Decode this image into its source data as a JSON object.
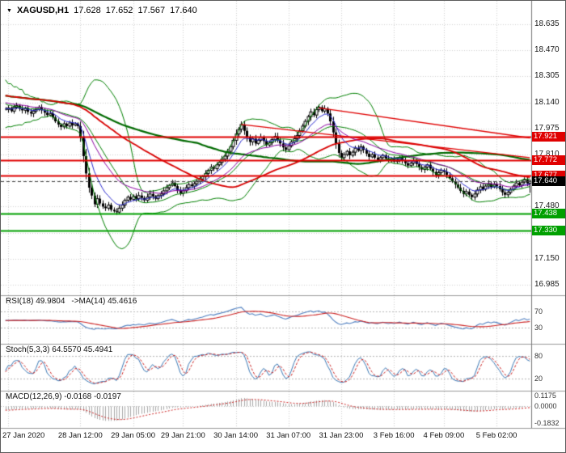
{
  "header": {
    "dropdown_icon": "▼",
    "symbol_display": "XAGUSD,H1",
    "ohlc": {
      "open": "17.628",
      "high": "17.652",
      "low": "17.567",
      "close": "17.640"
    }
  },
  "price_axis": {
    "labels": [
      "18.635",
      "18.470",
      "18.305",
      "18.140",
      "17.975",
      "17.810",
      "17.645",
      "17.480",
      "17.315",
      "17.150",
      "16.985"
    ]
  },
  "time_axis": {
    "labels": [
      "27 Jan 2020",
      "28 Jan 12:00",
      "29 Jan 05:00",
      "29 Jan 21:00",
      "30 Jan 14:00",
      "31 Jan 07:00",
      "31 Jan 23:00",
      "3 Feb 16:00",
      "4 Feb 09:00",
      "5 Feb 02:00"
    ],
    "indices": [
      1,
      27,
      46,
      64,
      83,
      102,
      121,
      140,
      158,
      177
    ]
  },
  "levels": [
    {
      "price": "17.921",
      "color": "#e00000",
      "kind": "resistance"
    },
    {
      "price": "17.772",
      "color": "#e00000",
      "kind": "resistance"
    },
    {
      "price": "17.677",
      "color": "#e00000",
      "kind": "resistance"
    },
    {
      "price": "17.438",
      "color": "#00a000",
      "kind": "support"
    },
    {
      "price": "17.330",
      "color": "#00a000",
      "kind": "support"
    }
  ],
  "current_price": {
    "value": "17.640",
    "box_color": "#000000"
  },
  "colors": {
    "grid": "#cfcfcf",
    "candle_bull": "#ffffff",
    "candle_bear": "#000000",
    "candle_outline": "#000000",
    "bollinger": "#008000",
    "ma_long_green": "#006a00",
    "ma_red": "#d80000",
    "ema_blue": "#2a2ad0",
    "ema_purple": "#8a00a0",
    "level_red": "#e00000",
    "level_green": "#00a000",
    "separator": "#9a9a9a",
    "rsi_main": "#4f7fc0",
    "rsi_ma": "#cc2222",
    "stoch_k": "#3a78b5",
    "stoch_d": "#cc2222",
    "macd_hist": "#a8a8a8",
    "macd_signal": "#cc2222"
  },
  "indicators": {
    "rsi": {
      "label": "RSI(18) 49.9804",
      "ma_label": "->MA(14) 45.4616",
      "period": 18,
      "ma_period": 14,
      "levels": [
        70,
        30
      ],
      "axis_labels": [
        "70",
        "30"
      ]
    },
    "stoch": {
      "label": "Stoch(5,3,3) 64.5570 45.4941",
      "k": 5,
      "d": 3,
      "slowing": 3,
      "levels": [
        80,
        20
      ],
      "axis_labels": [
        "80",
        "20"
      ]
    },
    "macd": {
      "label": "MACD(12,26,9) -0.0168 -0.0197",
      "fast": 12,
      "slow": 26,
      "signal": 9,
      "axis_labels": [
        "0.1175",
        "0.0000",
        "-0.1832"
      ]
    }
  },
  "chart_data": {
    "type": "candlestick",
    "symbol": "XAGUSD",
    "timeframe": "H1",
    "overlays": {
      "bollinger": {
        "period": 20,
        "deviation": 2
      },
      "ma_long": {
        "period": 100,
        "type": "sma"
      },
      "ma_red": {
        "period": 55,
        "type": "sma"
      },
      "ema_fast": {
        "period": 8,
        "type": "ema"
      },
      "ema_mid": {
        "period": 21,
        "type": "ema"
      }
    },
    "trendlines": [
      {
        "i1": 85,
        "p1": 18.0,
        "i2": 189,
        "p2": 17.79
      },
      {
        "i1": 113,
        "p1": 18.105,
        "i2": 189,
        "p2": 17.915
      }
    ],
    "warmup_closes": [
      18.3,
      18.38,
      18.22,
      18.42,
      18.15,
      18.35,
      18.2,
      18.4,
      18.18,
      18.32,
      18.12,
      18.28,
      18.1,
      18.25,
      18.08,
      18.22,
      18.12,
      18.26,
      18.06,
      18.18,
      18.02,
      18.15,
      18.05,
      18.2,
      18.08,
      18.16,
      18.04,
      18.12,
      18.06,
      18.1
    ],
    "closes": [
      18.095,
      18.105,
      18.085,
      18.11,
      18.12,
      18.1,
      18.09,
      18.105,
      18.08,
      18.07,
      18.085,
      18.095,
      18.11,
      18.09,
      18.075,
      18.06,
      18.07,
      18.045,
      18.02,
      18.0,
      17.985,
      18.005,
      17.99,
      18.01,
      17.995,
      18.005,
      17.99,
      17.92,
      17.8,
      17.69,
      17.6,
      17.55,
      17.495,
      17.53,
      17.5,
      17.48,
      17.47,
      17.49,
      17.46,
      17.45,
      17.445,
      17.47,
      17.49,
      17.52,
      17.54,
      17.525,
      17.545,
      17.53,
      17.55,
      17.535,
      17.52,
      17.54,
      17.56,
      17.545,
      17.53,
      17.55,
      17.56,
      17.58,
      17.6,
      17.615,
      17.63,
      17.61,
      17.585,
      17.565,
      17.58,
      17.6,
      17.62,
      17.61,
      17.625,
      17.64,
      17.655,
      17.67,
      17.69,
      17.71,
      17.73,
      17.72,
      17.745,
      17.76,
      17.78,
      17.8,
      17.83,
      17.86,
      17.9,
      17.94,
      17.97,
      18.0,
      17.96,
      17.92,
      17.89,
      17.91,
      17.88,
      17.9,
      17.92,
      17.895,
      17.87,
      17.885,
      17.905,
      17.925,
      17.9,
      17.88,
      17.855,
      17.84,
      17.865,
      17.89,
      17.91,
      17.93,
      17.96,
      17.99,
      18.02,
      18.05,
      18.08,
      18.06,
      18.095,
      18.11,
      18.085,
      18.1,
      18.07,
      18.02,
      17.95,
      17.88,
      17.82,
      17.79,
      17.81,
      17.83,
      17.805,
      17.825,
      17.85,
      17.835,
      17.86,
      17.84,
      17.815,
      17.795,
      17.81,
      17.79,
      17.775,
      17.79,
      17.805,
      17.785,
      17.77,
      17.78,
      17.765,
      17.775,
      17.79,
      17.77,
      17.755,
      17.74,
      17.755,
      17.77,
      17.75,
      17.73,
      17.715,
      17.73,
      17.745,
      17.72,
      17.7,
      17.68,
      17.695,
      17.71,
      17.7,
      17.68,
      17.66,
      17.64,
      17.62,
      17.6,
      17.58,
      17.56,
      17.575,
      17.555,
      17.54,
      17.56,
      17.585,
      17.605,
      17.59,
      17.61,
      17.625,
      17.605,
      17.62,
      17.61,
      17.59,
      17.57,
      17.555,
      17.57,
      17.59,
      17.61,
      17.63,
      17.615,
      17.635,
      17.65,
      17.628,
      17.64
    ]
  }
}
